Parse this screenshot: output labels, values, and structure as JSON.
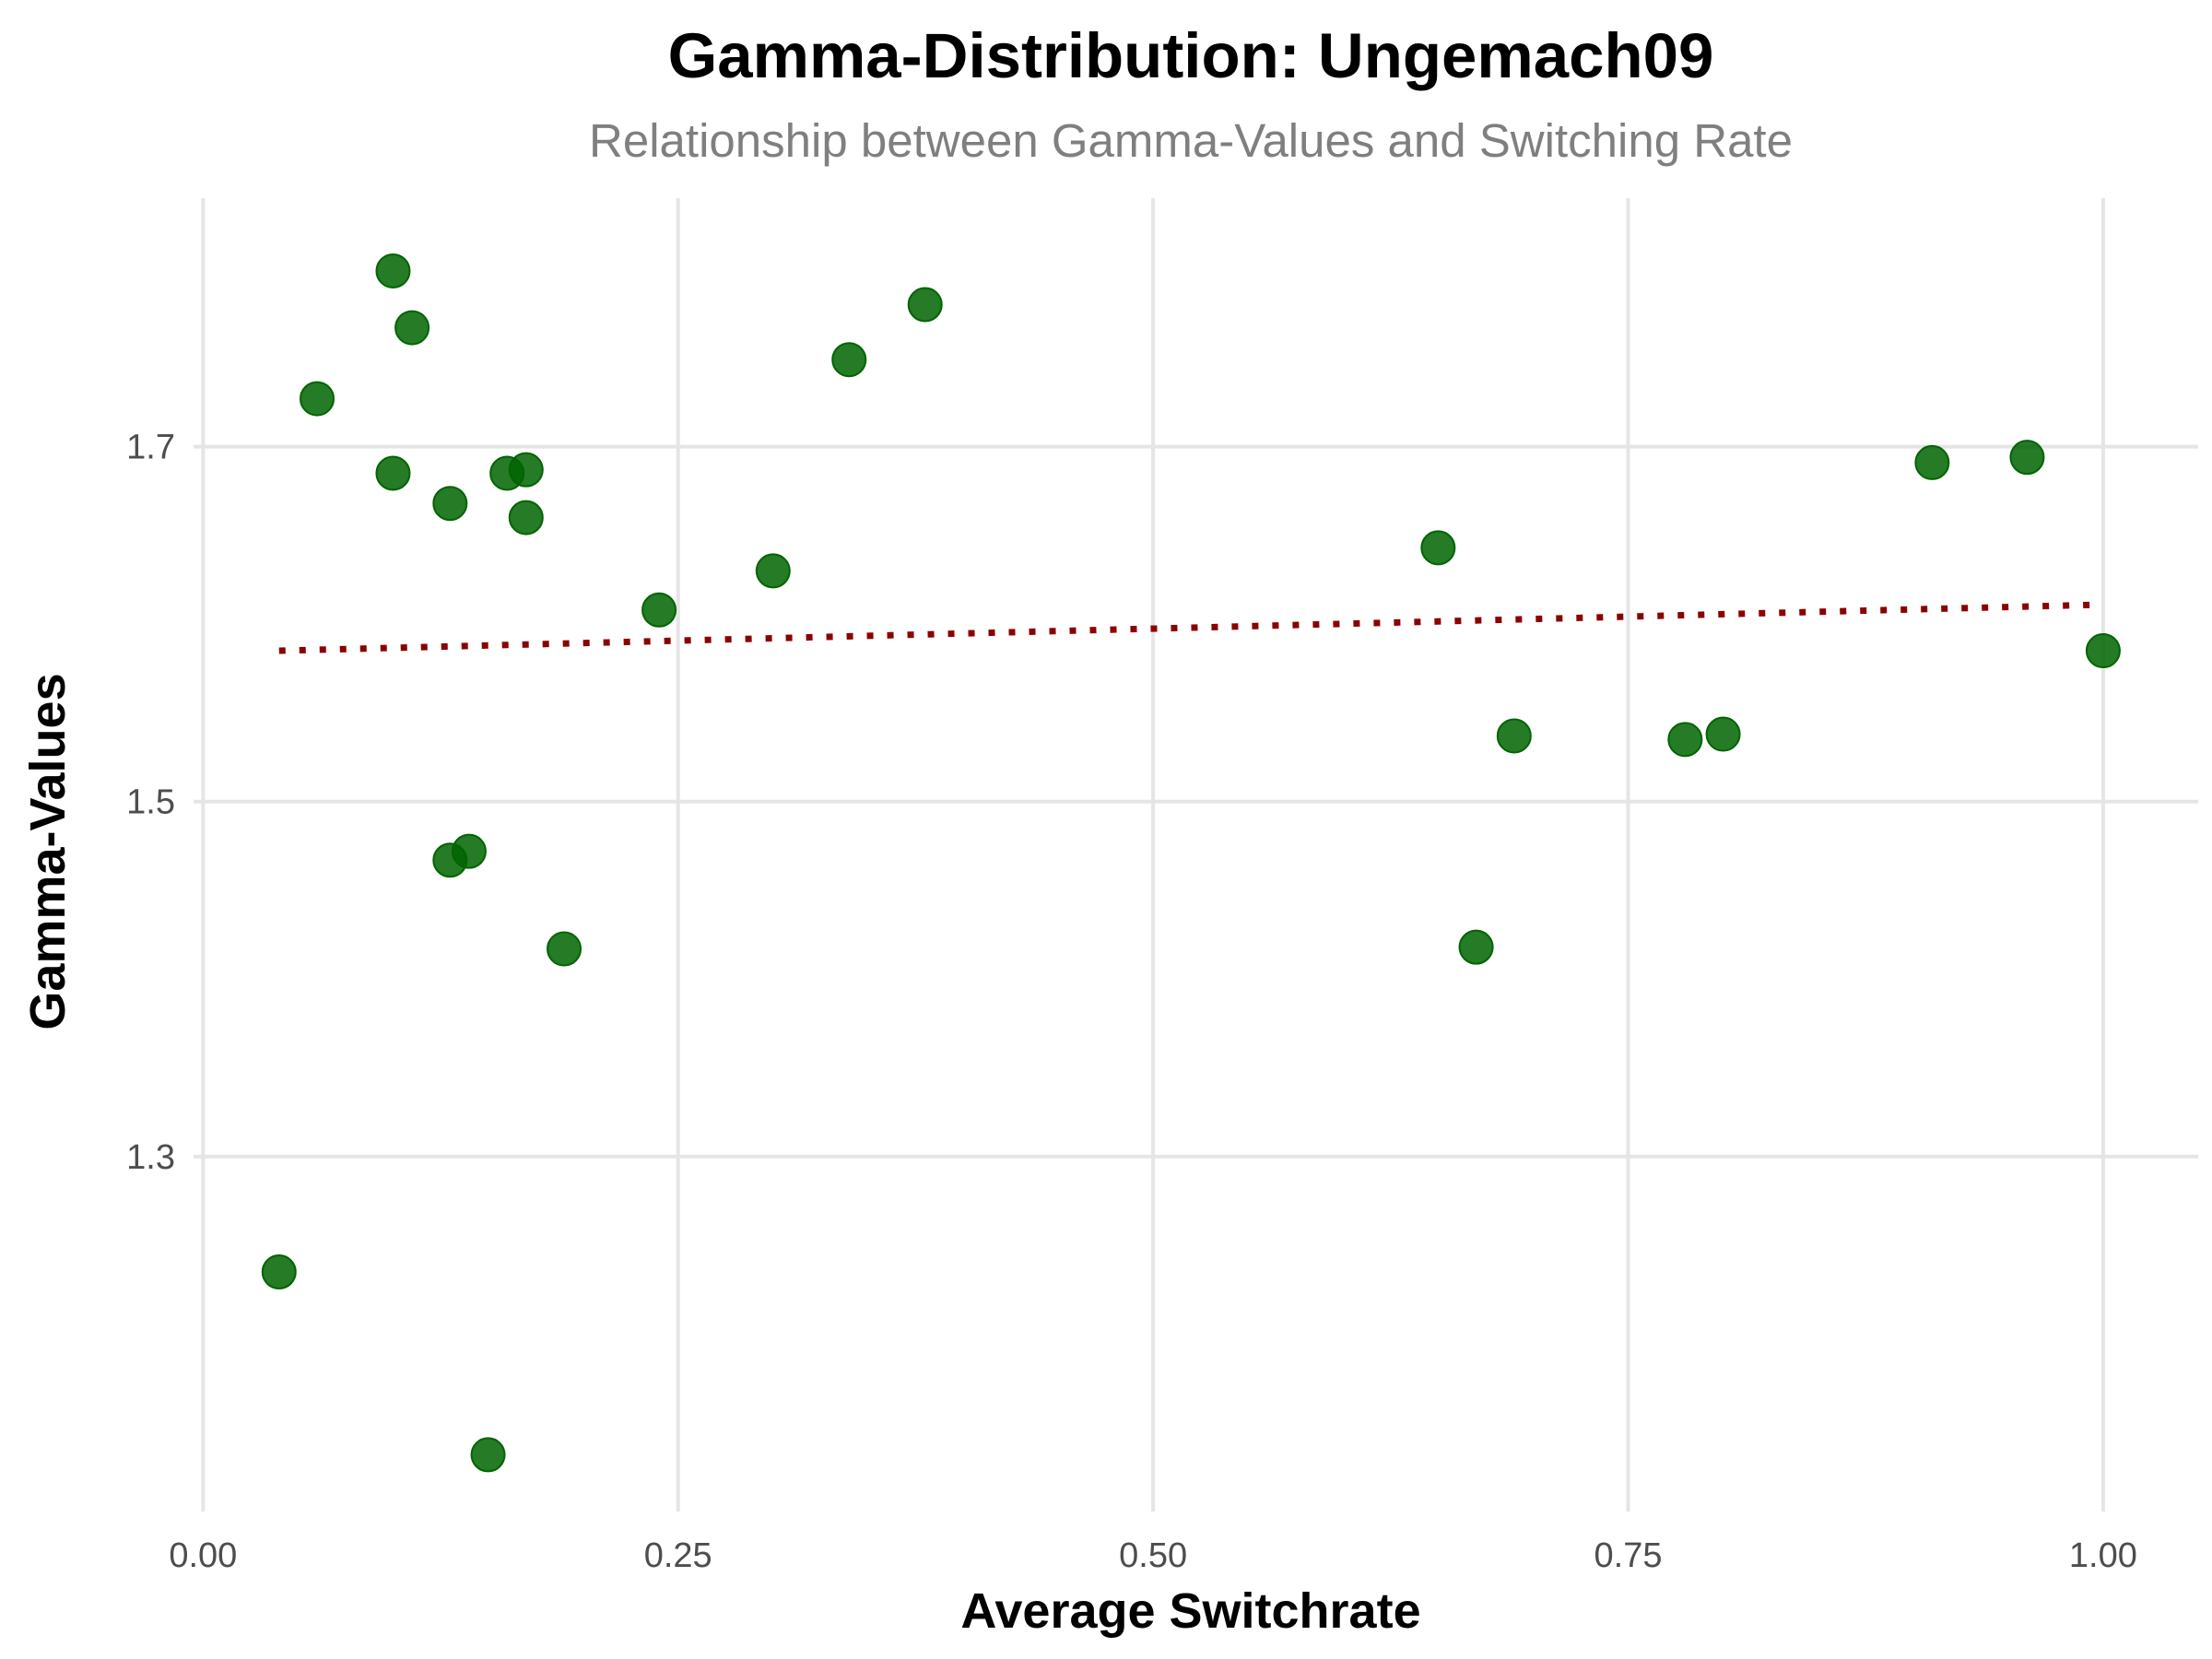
{
  "chart_data": {
    "type": "scatter",
    "title": "Gamma-Distribution: Ungemach09",
    "subtitle": "Relationship between Gamma-Values and Switching Rate",
    "xlabel": "Average Switchrate",
    "ylabel": "Gamma-Values",
    "xlim": [
      -0.005,
      1.05
    ],
    "ylim": [
      1.1,
      1.84
    ],
    "x_ticks": [
      0.0,
      0.25,
      0.5,
      0.75,
      1.0
    ],
    "x_tick_labels": [
      "0.00",
      "0.25",
      "0.50",
      "0.75",
      "1.00"
    ],
    "y_ticks": [
      1.3,
      1.5,
      1.7
    ],
    "y_tick_labels": [
      "1.3",
      "1.5",
      "1.7"
    ],
    "grid": true,
    "legend": "none",
    "point_color": "#006400",
    "trend_color": "#8b0000",
    "trend_style": "dotted",
    "trend_line": {
      "x": [
        0.04,
        1.0
      ],
      "y": [
        1.585,
        1.611
      ]
    },
    "points": [
      {
        "x": 0.04,
        "y": 1.235
      },
      {
        "x": 0.06,
        "y": 1.727
      },
      {
        "x": 0.1,
        "y": 1.799
      },
      {
        "x": 0.1,
        "y": 1.685
      },
      {
        "x": 0.11,
        "y": 1.767
      },
      {
        "x": 0.13,
        "y": 1.668
      },
      {
        "x": 0.13,
        "y": 1.467
      },
      {
        "x": 0.14,
        "y": 1.472
      },
      {
        "x": 0.15,
        "y": 1.132
      },
      {
        "x": 0.16,
        "y": 1.685
      },
      {
        "x": 0.17,
        "y": 1.687
      },
      {
        "x": 0.17,
        "y": 1.66
      },
      {
        "x": 0.19,
        "y": 1.417
      },
      {
        "x": 0.24,
        "y": 1.608
      },
      {
        "x": 0.3,
        "y": 1.63
      },
      {
        "x": 0.34,
        "y": 1.749
      },
      {
        "x": 0.38,
        "y": 1.78
      },
      {
        "x": 0.65,
        "y": 1.643
      },
      {
        "x": 0.67,
        "y": 1.418
      },
      {
        "x": 0.69,
        "y": 1.537
      },
      {
        "x": 0.78,
        "y": 1.535
      },
      {
        "x": 0.8,
        "y": 1.538
      },
      {
        "x": 0.91,
        "y": 1.691
      },
      {
        "x": 0.96,
        "y": 1.694
      },
      {
        "x": 1.0,
        "y": 1.585
      }
    ]
  }
}
